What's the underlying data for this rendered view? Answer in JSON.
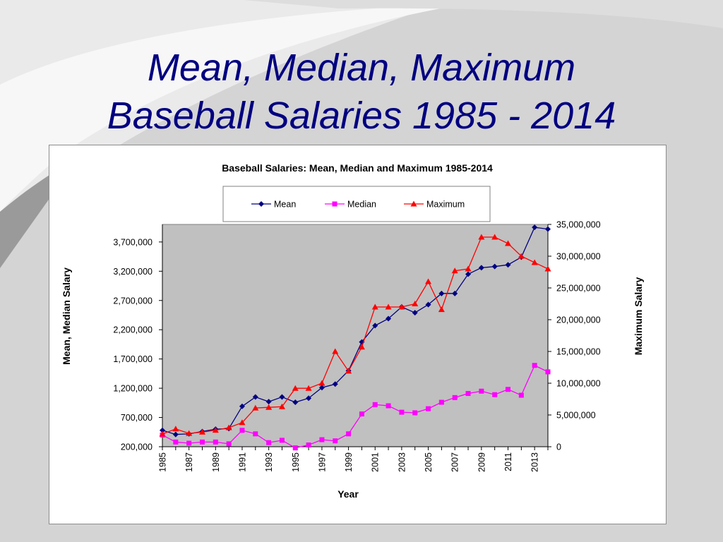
{
  "slide": {
    "title_line1": "Mean, Median, Maximum",
    "title_line2": "Baseball Salaries 1985 - 2014"
  },
  "chart_data": {
    "type": "line",
    "title": "Baseball Salaries: Mean, Median and Maximum 1985-2014",
    "xlabel": "Year",
    "ylabel": "Mean, Median Salary",
    "y2label": "Maximum Salary",
    "x": [
      1985,
      1986,
      1987,
      1988,
      1989,
      1990,
      1991,
      1992,
      1993,
      1994,
      1995,
      1996,
      1997,
      1998,
      1999,
      2000,
      2001,
      2002,
      2003,
      2004,
      2005,
      2006,
      2007,
      2008,
      2009,
      2010,
      2011,
      2012,
      2013,
      2014
    ],
    "x_tick_labels": [
      "1985",
      "1987",
      "1989",
      "1991",
      "1993",
      "1995",
      "1997",
      "1999",
      "2001",
      "2003",
      "2005",
      "2007",
      "2009",
      "2011",
      "2013"
    ],
    "ylim": [
      200000,
      4000000
    ],
    "y_tick_labels": [
      "200,000",
      "700,000",
      "1,200,000",
      "1,700,000",
      "2,200,000",
      "2,700,000",
      "3,200,000",
      "3,700,000"
    ],
    "y2lim": [
      0,
      35000000
    ],
    "y2_tick_labels": [
      "0",
      "5,000,000",
      "10,000,000",
      "15,000,000",
      "20,000,000",
      "25,000,000",
      "30,000,000",
      "35,000,000"
    ],
    "plot_background": "#c0c0c0",
    "grid": false,
    "legend_position": "top",
    "series": [
      {
        "name": "Mean",
        "axis": "left",
        "color": "#000080",
        "marker": "diamond",
        "values": [
          480000,
          410000,
          420000,
          460000,
          500000,
          510000,
          890000,
          1050000,
          970000,
          1050000,
          960000,
          1030000,
          1210000,
          1270000,
          1500000,
          1990000,
          2270000,
          2390000,
          2590000,
          2490000,
          2630000,
          2820000,
          2820000,
          3150000,
          3260000,
          3280000,
          3310000,
          3440000,
          3950000,
          3920000
        ]
      },
      {
        "name": "Median",
        "axis": "left",
        "color": "#ff00ff",
        "marker": "square",
        "values": [
          400000,
          280000,
          260000,
          280000,
          280000,
          250000,
          480000,
          420000,
          270000,
          310000,
          180000,
          230000,
          320000,
          300000,
          420000,
          760000,
          920000,
          900000,
          790000,
          780000,
          850000,
          960000,
          1040000,
          1110000,
          1150000,
          1090000,
          1180000,
          1080000,
          1590000,
          1480000
        ]
      },
      {
        "name": "Maximum",
        "axis": "right",
        "color": "#ff0000",
        "marker": "triangle",
        "values": [
          2000000,
          2800000,
          2100000,
          2300000,
          2600000,
          3000000,
          3800000,
          6100000,
          6200000,
          6300000,
          9200000,
          9200000,
          10000000,
          15000000,
          11900000,
          15700000,
          22000000,
          22000000,
          22000000,
          22500000,
          26000000,
          21600000,
          27700000,
          28000000,
          33000000,
          33000000,
          32000000,
          30000000,
          29000000,
          28000000
        ]
      }
    ]
  }
}
